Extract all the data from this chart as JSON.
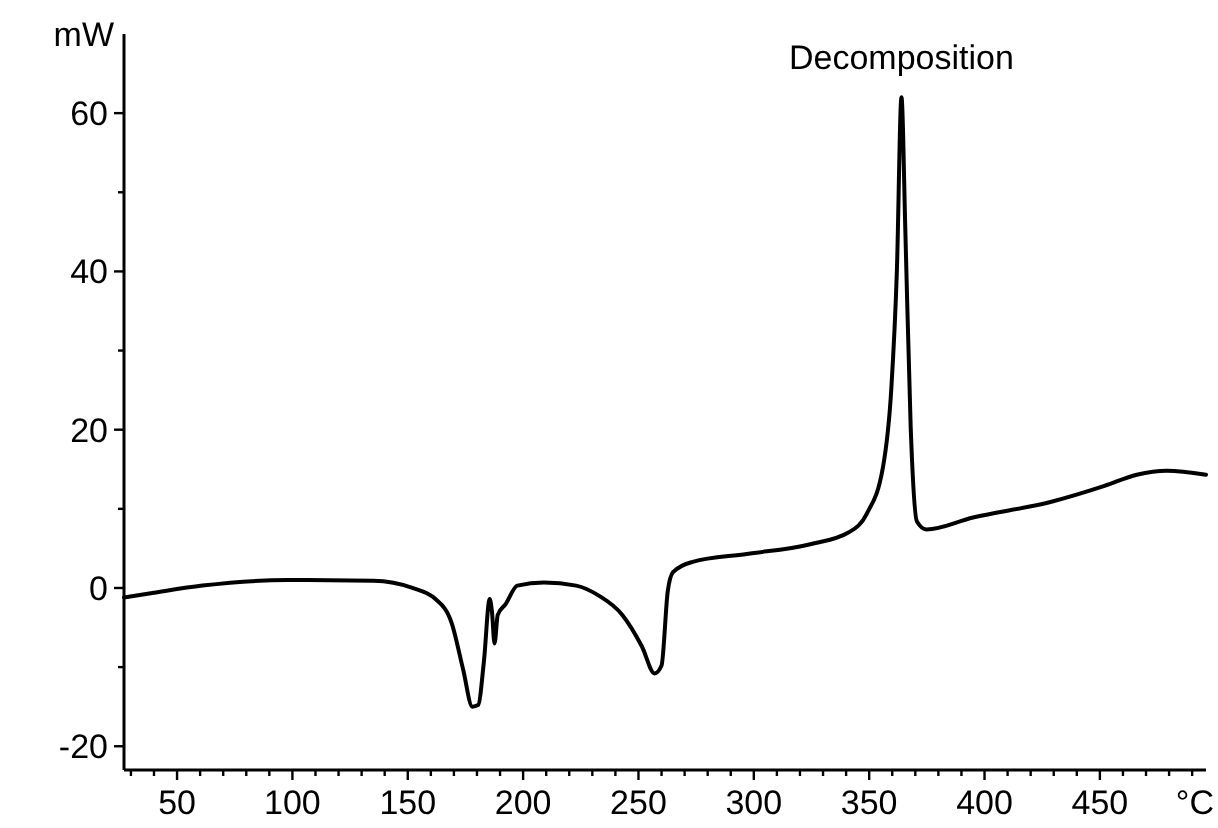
{
  "chart_data": {
    "type": "line",
    "xlabel": "°C",
    "ylabel": "mW",
    "annotations": [
      {
        "text": "Decomposition",
        "x": 364,
        "y": 62
      }
    ],
    "xlim": [
      27,
      496
    ],
    "ylim": [
      -23,
      70
    ],
    "xticks": [
      {
        "value": 30,
        "label": null
      },
      {
        "value": 40,
        "label": null
      },
      50,
      {
        "value": 60,
        "label": null
      },
      {
        "value": 70,
        "label": null
      },
      {
        "value": 80,
        "label": null
      },
      {
        "value": 90,
        "label": null
      },
      100,
      {
        "value": 110,
        "label": null
      },
      {
        "value": 120,
        "label": null
      },
      {
        "value": 130,
        "label": null
      },
      {
        "value": 140,
        "label": null
      },
      150,
      {
        "value": 160,
        "label": null
      },
      {
        "value": 170,
        "label": null
      },
      {
        "value": 180,
        "label": null
      },
      {
        "value": 190,
        "label": null
      },
      200,
      {
        "value": 210,
        "label": null
      },
      {
        "value": 220,
        "label": null
      },
      {
        "value": 230,
        "label": null
      },
      {
        "value": 240,
        "label": null
      },
      250,
      {
        "value": 260,
        "label": null
      },
      {
        "value": 270,
        "label": null
      },
      {
        "value": 280,
        "label": null
      },
      {
        "value": 290,
        "label": null
      },
      300,
      {
        "value": 310,
        "label": null
      },
      {
        "value": 320,
        "label": null
      },
      {
        "value": 330,
        "label": null
      },
      {
        "value": 340,
        "label": null
      },
      350,
      {
        "value": 360,
        "label": null
      },
      {
        "value": 370,
        "label": null
      },
      {
        "value": 380,
        "label": null
      },
      {
        "value": 390,
        "label": null
      },
      400,
      {
        "value": 410,
        "label": null
      },
      {
        "value": 420,
        "label": null
      },
      {
        "value": 430,
        "label": null
      },
      {
        "value": 440,
        "label": null
      },
      450,
      {
        "value": 460,
        "label": null
      },
      {
        "value": 470,
        "label": null
      },
      {
        "value": 480,
        "label": null
      },
      {
        "value": 490,
        "label": null
      }
    ],
    "yticks": [
      -20,
      {
        "value": -10,
        "label": null
      },
      0,
      {
        "value": 10,
        "label": null
      },
      20,
      {
        "value": 30,
        "label": null
      },
      40,
      {
        "value": 50,
        "label": null
      },
      60
    ],
    "grid": false,
    "marker": "none",
    "line_style": "solid",
    "series": [
      {
        "color": "#000000",
        "x": [
          27,
          40,
          61,
          98,
          135,
          152,
          162,
          169,
          174,
          178,
          180.5,
          183,
          185.5,
          186.5,
          187.6,
          189,
          192.5,
          197.5,
          209,
          223,
          233,
          243,
          251.5,
          257,
          260,
          262.7,
          265,
          273.5,
          297,
          324,
          341,
          349,
          356,
          359.6,
          362,
          364,
          365.7,
          368,
          370.7,
          374.8,
          395,
          429,
          452,
          466,
          479,
          496
        ],
        "values": [
          -1.2,
          -0.6,
          0.3,
          1,
          0.9,
          0,
          -1.4,
          -4.4,
          -10.3,
          -15,
          -14.8,
          -9.3,
          -1.4,
          -3,
          -7,
          -3.4,
          -2,
          0.3,
          0.7,
          0.3,
          -1,
          -3.4,
          -7.4,
          -10.8,
          -9.8,
          -0.4,
          2,
          3.3,
          4.3,
          5.5,
          7,
          9.4,
          15.3,
          25.2,
          40,
          62,
          44.9,
          20.3,
          8.4,
          7.4,
          8.9,
          10.9,
          12.9,
          14.3,
          14.8,
          14.3
        ]
      }
    ]
  }
}
